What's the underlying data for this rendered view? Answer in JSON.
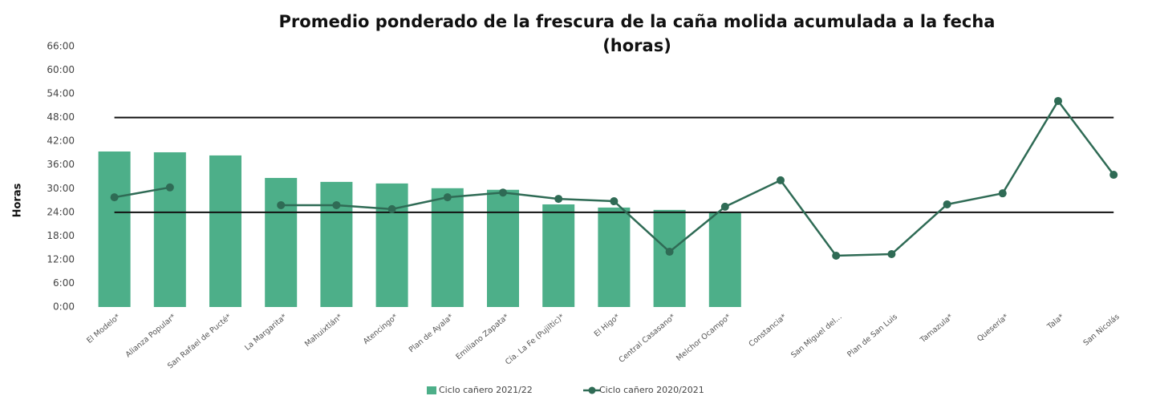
{
  "chart_data": {
    "type": "bar_line",
    "title": [
      "Promedio ponderado de la frescura de la caña molida acumulada a la fecha",
      "(horas)"
    ],
    "y_label": "Horas",
    "categories": [
      "El Modelo*",
      "Alianza Popular*",
      "San Rafael de Pucté*",
      "La Margarita*",
      "Mahuixtlán*",
      "Atencingo*",
      "Plan de Ayala*",
      "Emiliano Zapata*",
      "Cía. La Fe (Pujiltic)*",
      "El Higo*",
      "Central Casasano*",
      "Melchor Ocampo*",
      "Constancia*",
      "San Miguel del...",
      "Plan de San Luis",
      "Tamazula*",
      "Quesería*",
      "Tala*",
      "San Nicolás"
    ],
    "series": [
      {
        "name": "Ciclo cañero 2021/22",
        "type": "bar",
        "color": "#4daf89",
        "values": [
          39.4,
          39.2,
          38.4,
          32.7,
          31.7,
          31.3,
          30.1,
          29.7,
          26.0,
          25.2,
          24.6,
          24.0,
          null,
          null,
          null,
          null,
          null,
          null,
          null
        ]
      },
      {
        "name": "Ciclo cañero 2020/2021",
        "type": "line",
        "color": "#2f6b55",
        "values": [
          27.8,
          30.3,
          null,
          25.8,
          25.8,
          24.8,
          27.8,
          29.0,
          27.4,
          26.8,
          14.0,
          25.4,
          32.1,
          13.0,
          13.4,
          26.0,
          28.8,
          52.2,
          33.5
        ]
      }
    ],
    "reference_lines": [
      48,
      24
    ],
    "ylim": [
      0,
      66
    ],
    "yticks": [
      {
        "value": 0,
        "label": "0:00"
      },
      {
        "value": 6,
        "label": "6:00"
      },
      {
        "value": 12,
        "label": "12:00"
      },
      {
        "value": 18,
        "label": "18:00"
      },
      {
        "value": 24,
        "label": "24:00"
      },
      {
        "value": 30,
        "label": "30:00"
      },
      {
        "value": 36,
        "label": "36:00"
      },
      {
        "value": 42,
        "label": "42:00"
      },
      {
        "value": 48,
        "label": "48:00"
      },
      {
        "value": 54,
        "label": "54:00"
      },
      {
        "value": 60,
        "label": "60:00"
      },
      {
        "value": 66,
        "label": "66:00"
      }
    ],
    "legend": "bottom"
  }
}
